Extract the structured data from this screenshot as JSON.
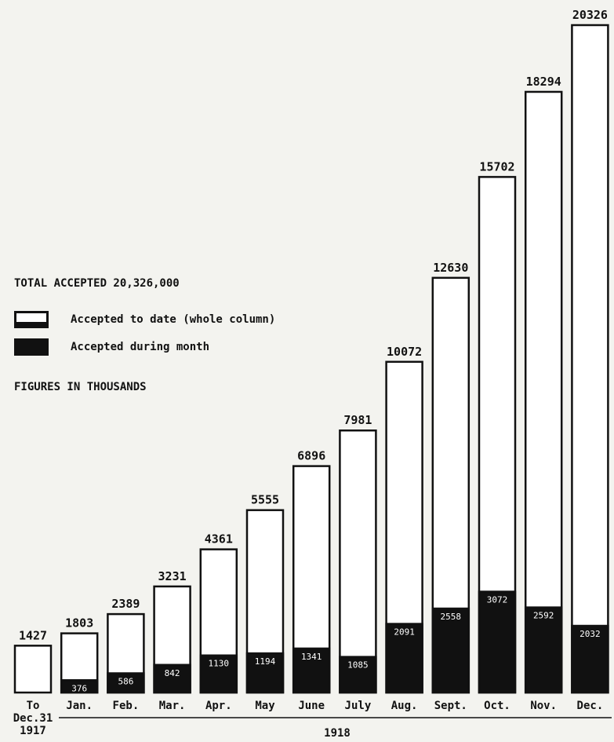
{
  "legend": {
    "title": "TOTAL ACCEPTED 20,326,000",
    "cumulative_label": "Accepted to date (whole column)",
    "monthly_label": "Accepted during month",
    "note": "FIGURES IN THOUSANDS"
  },
  "colors": {
    "cumulative": "#ffffff",
    "monthly": "#111111",
    "outline": "#111111"
  },
  "chart_data": {
    "type": "bar",
    "categories": [
      "To Dec.31 1917",
      "Jan.",
      "Feb.",
      "Mar.",
      "Apr.",
      "May",
      "June",
      "July",
      "Aug.",
      "Sept.",
      "Oct.",
      "Nov.",
      "Dec."
    ],
    "category_lines": [
      [
        "To",
        "Dec.31",
        "1917"
      ],
      [
        "Jan."
      ],
      [
        "Feb."
      ],
      [
        "Mar."
      ],
      [
        "Apr."
      ],
      [
        "May"
      ],
      [
        "June"
      ],
      [
        "July"
      ],
      [
        "Aug."
      ],
      [
        "Sept."
      ],
      [
        "Oct."
      ],
      [
        "Nov."
      ],
      [
        "Dec."
      ]
    ],
    "group_label": "1918",
    "series": [
      {
        "name": "Accepted to date (whole column)",
        "values": [
          1427,
          1803,
          2389,
          3231,
          4361,
          5555,
          6896,
          7981,
          10072,
          12630,
          15702,
          18294,
          20326
        ]
      },
      {
        "name": "Accepted during month",
        "values": [
          null,
          376,
          586,
          842,
          1130,
          1194,
          1341,
          1085,
          2091,
          2558,
          3072,
          2592,
          2032
        ]
      }
    ],
    "ylim": [
      0,
      20326
    ],
    "grid": false,
    "legend_position": "left-middle"
  }
}
